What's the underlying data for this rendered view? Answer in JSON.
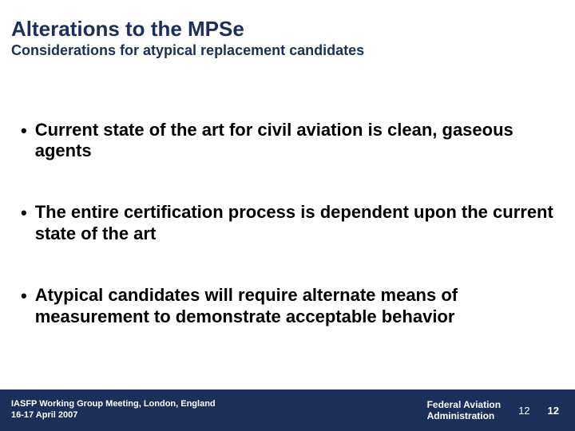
{
  "colors": {
    "heading": "#1a2f5a",
    "body_text": "#000000",
    "footer_bg": "#1a2f5a",
    "footer_text": "#ffffff",
    "background": "#ffffff"
  },
  "typography": {
    "title_fontsize_pt": 20,
    "subtitle_fontsize_pt": 14,
    "bullet_fontsize_pt": 17,
    "footer_fontsize_pt": 8
  },
  "header": {
    "title": "Alterations to the MPSe",
    "subtitle": "Considerations for atypical replacement candidates"
  },
  "bullets": [
    "Current state of the art for civil aviation is clean, gaseous agents",
    "The entire certification process is dependent upon the current state of the art",
    "Atypical candidates will require alternate means of measurement to demonstrate acceptable behavior"
  ],
  "footer": {
    "event_line1": "IASFP Working Group Meeting, London, England",
    "event_line2": "16-17 April 2007",
    "org_line1": "Federal Aviation",
    "org_line2": "Administration",
    "page_a": "12",
    "page_b": "12"
  }
}
